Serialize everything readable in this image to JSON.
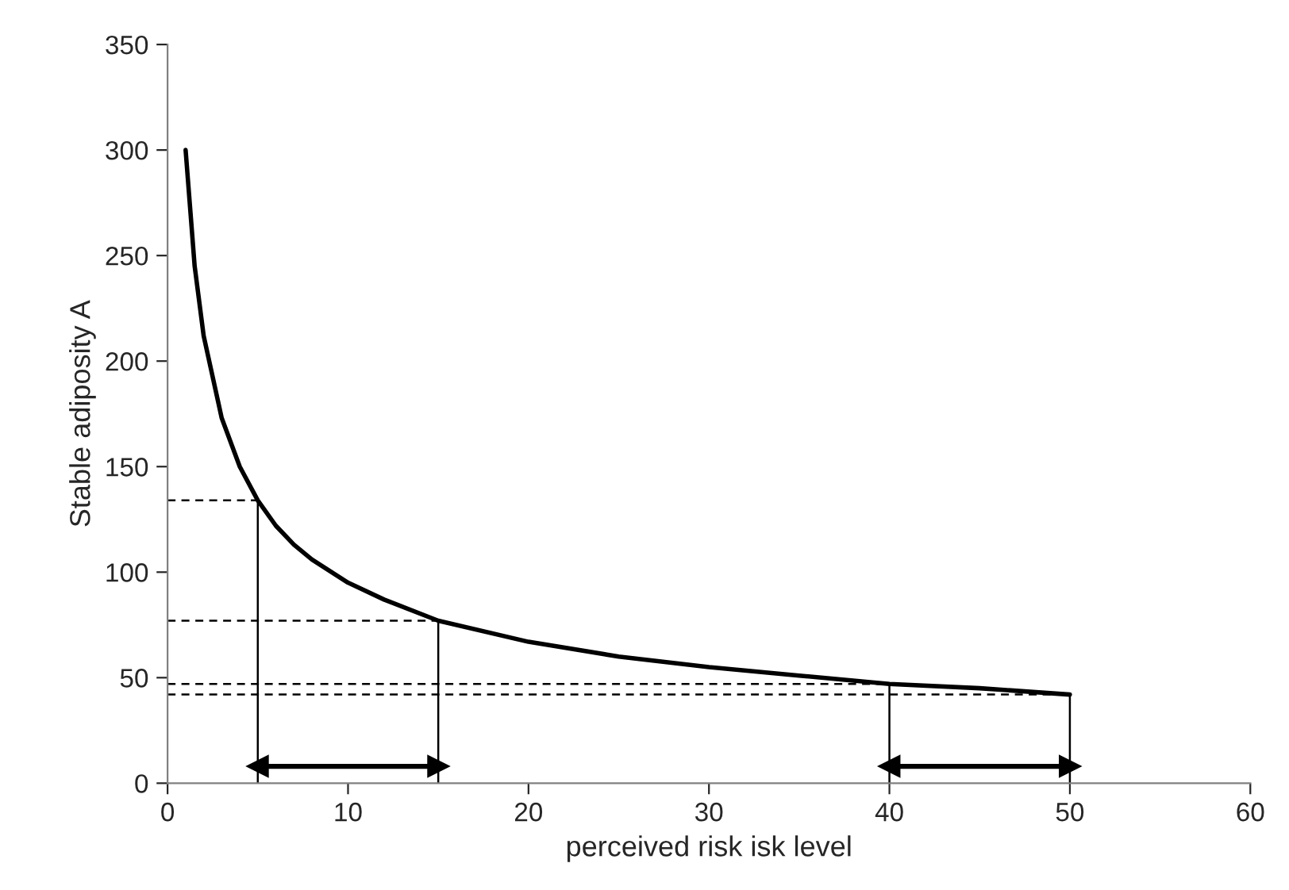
{
  "chart_data": {
    "type": "line",
    "xlabel": "perceived risk isk level",
    "ylabel": "Stable adiposity A",
    "xlim": [
      0,
      60
    ],
    "xticks": [
      0,
      10,
      20,
      30,
      40,
      50,
      60
    ],
    "ylim": [
      0,
      350
    ],
    "yticks": [
      0,
      50,
      100,
      150,
      200,
      250,
      300,
      350
    ],
    "grid": false,
    "legend": false,
    "series": [
      {
        "color": "#000000",
        "line_style": "solid",
        "x": [
          1,
          1.5,
          2,
          3,
          4,
          5,
          6,
          7,
          8,
          10,
          12,
          15,
          20,
          25,
          30,
          35,
          40,
          45,
          50
        ],
        "values": [
          300,
          245,
          212,
          173,
          150,
          134,
          122,
          113,
          106,
          95,
          87,
          77,
          67,
          60,
          55,
          51,
          47,
          45,
          42
        ]
      },
      {
        "color": "#000000",
        "line_style": "solid",
        "x": [
          5,
          5
        ],
        "values": [
          0,
          134
        ]
      },
      {
        "color": "#000000",
        "line_style": "solid",
        "x": [
          15,
          15
        ],
        "values": [
          0,
          77
        ]
      },
      {
        "color": "#000000",
        "line_style": "solid",
        "x": [
          40,
          40
        ],
        "values": [
          0,
          47
        ]
      },
      {
        "color": "#000000",
        "line_style": "solid",
        "x": [
          50,
          50
        ],
        "values": [
          0,
          42
        ]
      },
      {
        "color": "#000000",
        "line_style": "dashed",
        "x": [
          0,
          5
        ],
        "values": [
          134,
          134
        ]
      },
      {
        "color": "#000000",
        "line_style": "dashed",
        "x": [
          0,
          15
        ],
        "values": [
          77,
          77
        ]
      },
      {
        "color": "#000000",
        "line_style": "dashed",
        "x": [
          0,
          40
        ],
        "values": [
          47,
          47
        ]
      },
      {
        "color": "#000000",
        "line_style": "dashed",
        "x": [
          0,
          50
        ],
        "values": [
          42,
          42
        ]
      },
      {
        "type": "line",
        "marker": "triangle",
        "color": "#000000",
        "x": [
          5,
          15
        ],
        "values": [
          8,
          8
        ]
      },
      {
        "type": "line",
        "marker": "triangle",
        "color": "#000000",
        "x": [
          40,
          50
        ],
        "values": [
          8,
          8
        ]
      }
    ]
  }
}
